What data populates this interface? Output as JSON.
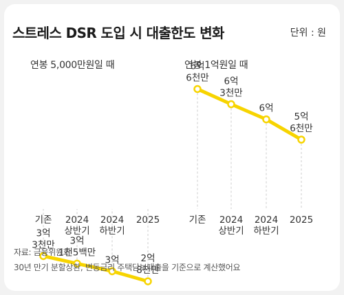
{
  "title": "스트레스 DSR 도입 시 대출한도 변화",
  "unit": "단위 : 원",
  "footer": {
    "source": "자료: 금융위원회",
    "note": "30년 만기 분할상환, 변동금리 주택담보대출을 기준으로 계산했어요"
  },
  "colors": {
    "line": "#f7d400",
    "grid": "#cccccc",
    "bg": "#f2f2f2",
    "card": "#ffffff"
  },
  "chart_data": [
    {
      "type": "line",
      "title": "연봉 5,000만원일 때",
      "categories": [
        "기존",
        "2024 상반기",
        "2024 하반기",
        "2025"
      ],
      "values": [
        330000000,
        315000000,
        300000000,
        280000000
      ],
      "value_labels": [
        "3억 3천만",
        "3억 1천5백만",
        "3억",
        "2억 8천만"
      ],
      "ylim": [
        200000000,
        700000000
      ],
      "grid": "vertical dashed"
    },
    {
      "type": "line",
      "title": "연봉 1억원일 때",
      "categories": [
        "기존",
        "2024 상반기",
        "2024 하반기",
        "2025"
      ],
      "values": [
        660000000,
        630000000,
        600000000,
        560000000
      ],
      "value_labels": [
        "6억 6천만",
        "6억 3천만",
        "6억",
        "5억 6천만"
      ],
      "ylim": [
        200000000,
        700000000
      ],
      "grid": "vertical dashed"
    }
  ]
}
